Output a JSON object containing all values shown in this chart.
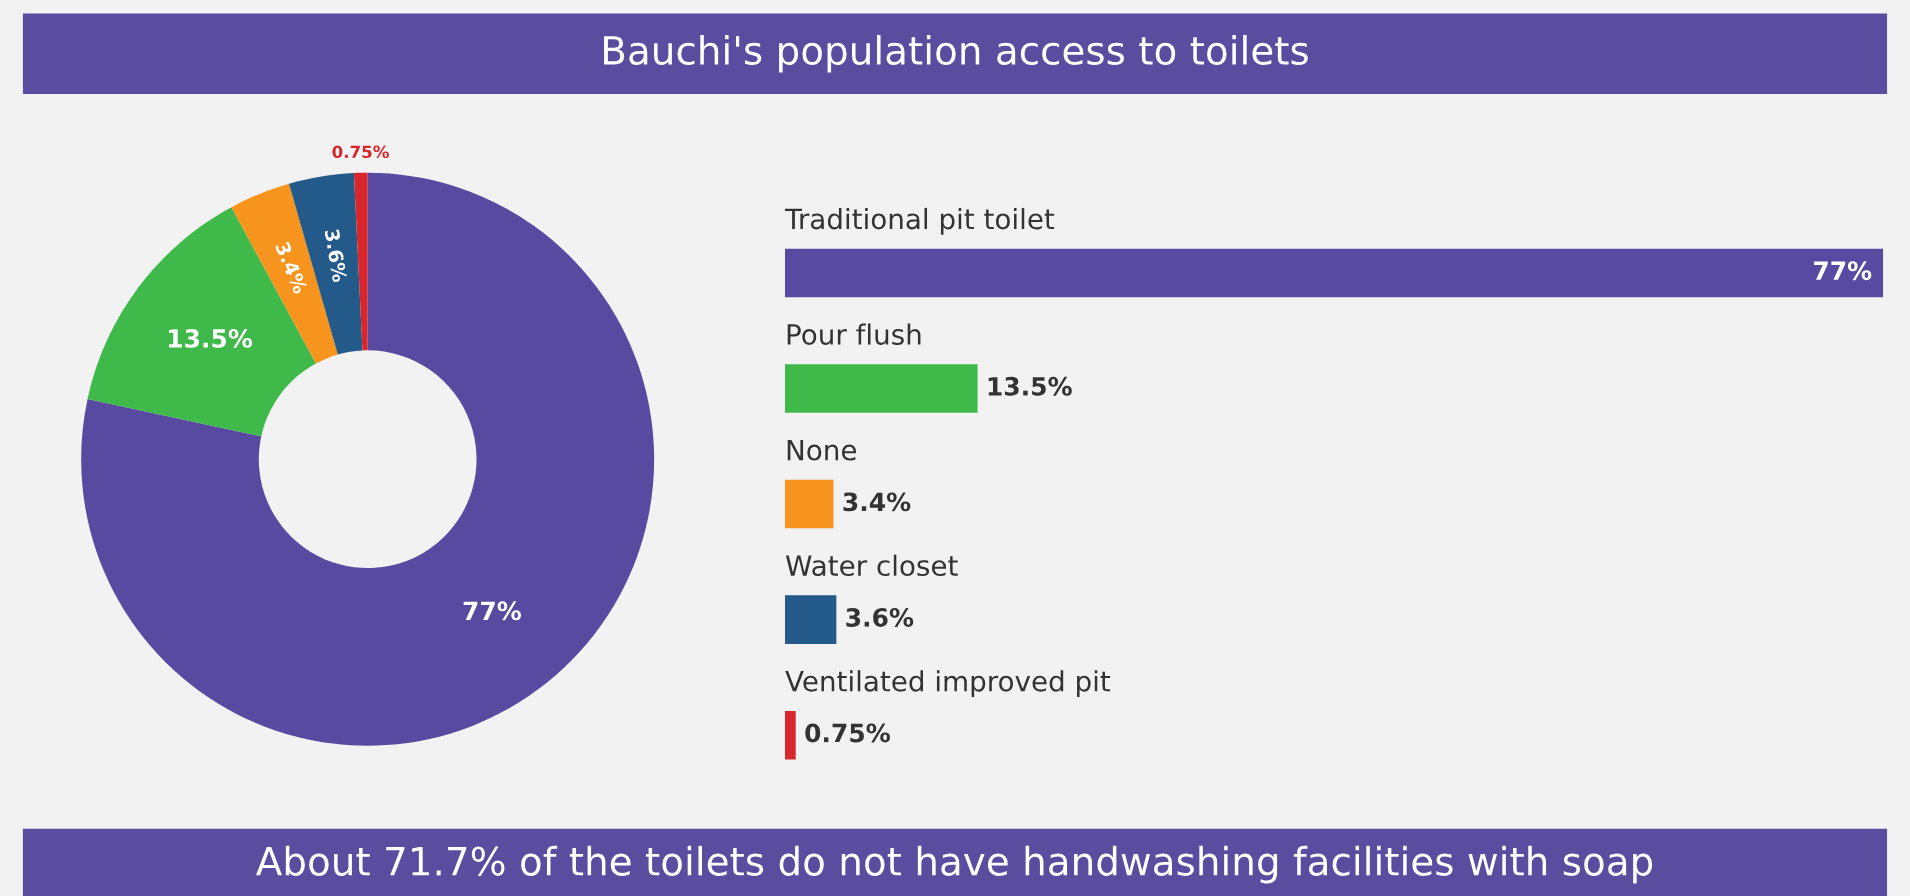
{
  "chart_data": [
    {
      "type": "donut",
      "categories": [
        null,
        null,
        null,
        null,
        null
      ],
      "values": [
        77,
        13.5,
        3.4,
        3.6,
        0.75
      ],
      "value_labels": [
        "77%",
        "13.5%",
        "3.4%",
        "3.6%",
        "0.75%"
      ],
      "colors": [
        "#574aa0",
        "#3fb94a",
        "#f7941d",
        "#245a8a",
        "#d7262c"
      ]
    },
    {
      "type": "bar",
      "orientation": "horizontal",
      "title": "Bauchi's population access to toilets",
      "categories": [
        "Traditional pit toilet",
        "Pour flush",
        "None",
        "Water closet",
        "Ventilated improved pit"
      ],
      "values": [
        77,
        13.5,
        3.4,
        3.6,
        0.75
      ],
      "value_labels": [
        "77%",
        "13.5%",
        "3.4%",
        "3.6%",
        "0.75%"
      ],
      "colors": [
        "#574aa0",
        "#3fb94a",
        "#f7941d",
        "#245a8a",
        "#d7262c"
      ],
      "annotations": [
        "About 71.7% of the toilets do not have handwashing facilities with soap"
      ]
    }
  ]
}
